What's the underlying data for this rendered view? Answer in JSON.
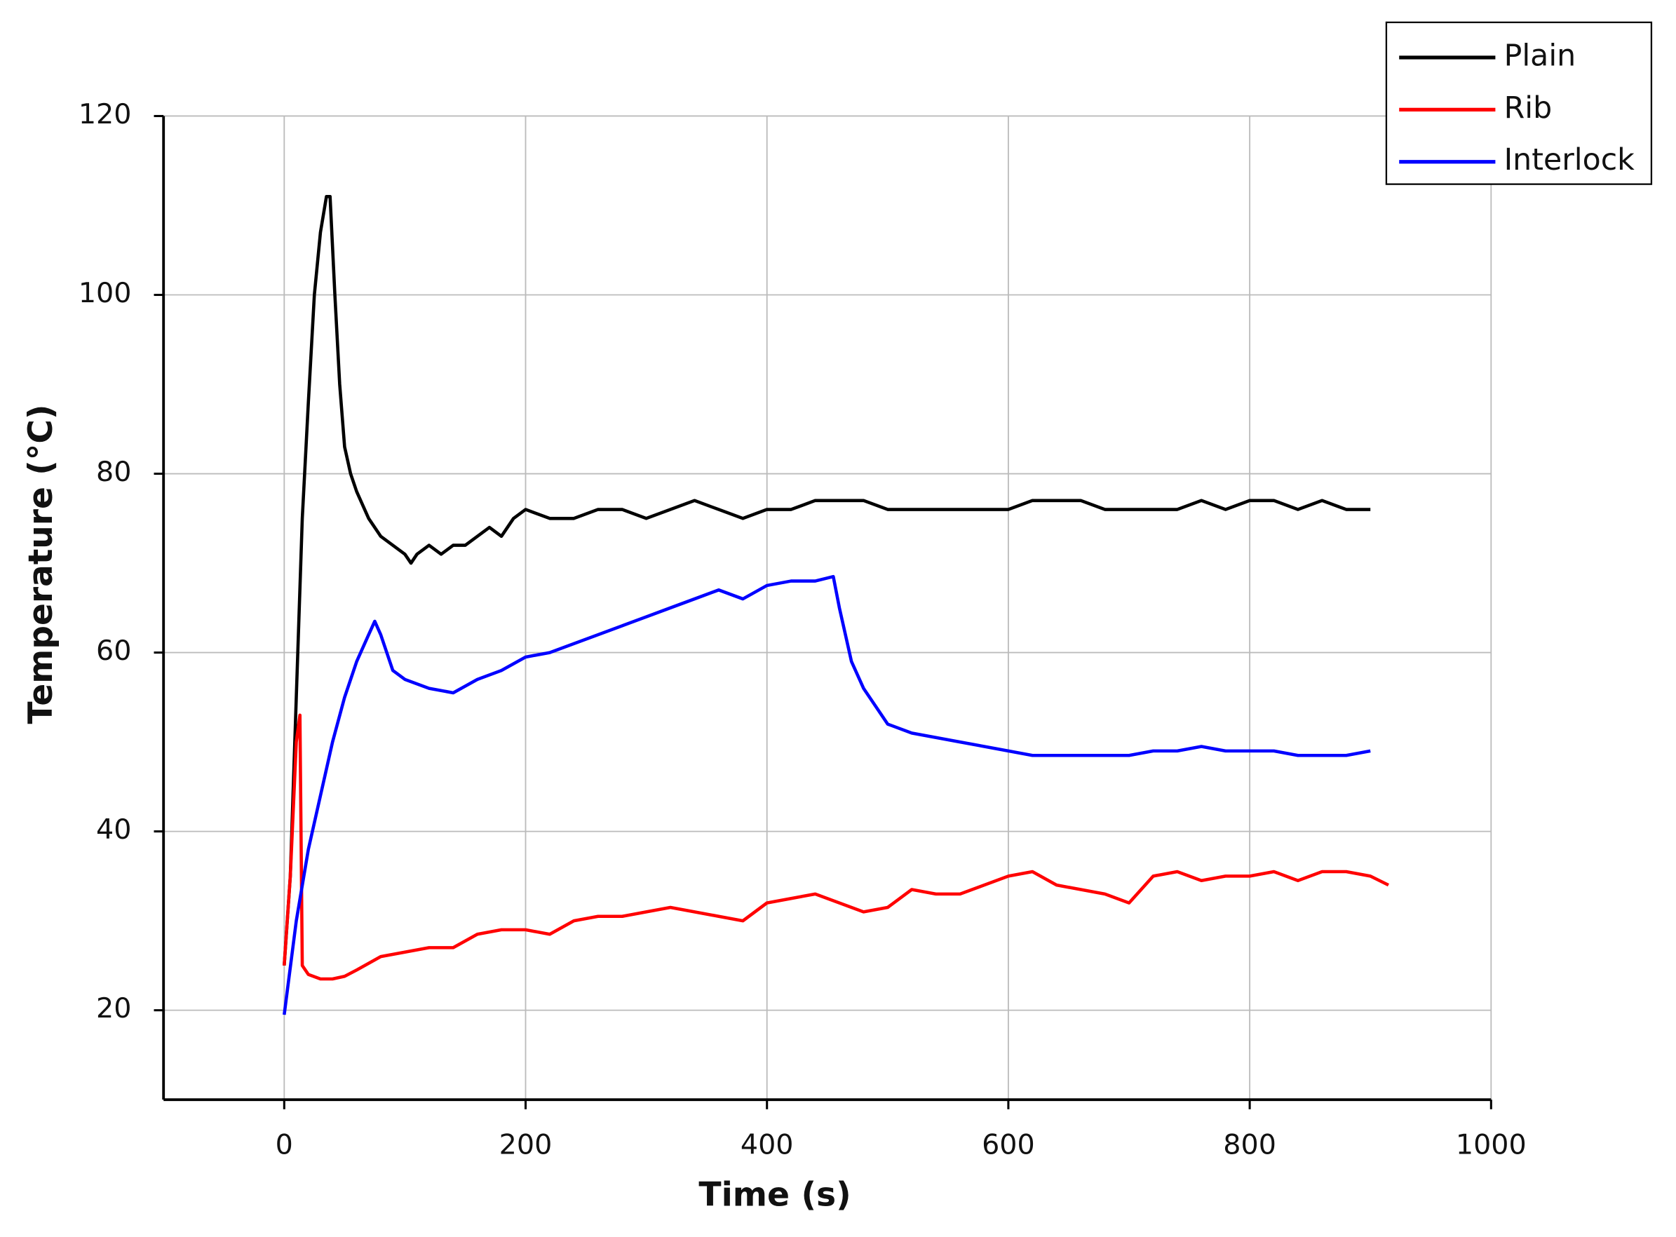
{
  "chart_data": {
    "type": "line",
    "x_label": "Time (s)",
    "y_label": "Temperature (°C)",
    "xlim": [
      -100,
      1000
    ],
    "xticks": [
      0,
      200,
      400,
      600,
      800,
      1000
    ],
    "ylim": [
      10,
      120
    ],
    "yticks": [
      20,
      40,
      60,
      80,
      100,
      120
    ],
    "grid": true,
    "legend": "upper-right",
    "series": [
      {
        "name": "Plain",
        "color": "#000000",
        "x": [
          0,
          5,
          10,
          15,
          20,
          25,
          30,
          35,
          38,
          42,
          46,
          50,
          55,
          60,
          70,
          80,
          90,
          100,
          105,
          110,
          120,
          130,
          140,
          150,
          160,
          170,
          180,
          190,
          200,
          220,
          240,
          260,
          280,
          300,
          320,
          340,
          360,
          380,
          400,
          420,
          440,
          460,
          480,
          500,
          520,
          540,
          560,
          580,
          600,
          620,
          640,
          660,
          680,
          700,
          720,
          740,
          760,
          780,
          800,
          820,
          840,
          860,
          880,
          900
        ],
        "values": [
          25,
          35,
          55,
          75,
          88,
          100,
          107,
          111,
          111,
          100,
          90,
          83,
          80,
          78,
          75,
          73,
          72,
          71,
          70,
          71,
          72,
          71,
          72,
          72,
          73,
          74,
          73,
          75,
          76,
          75,
          75,
          76,
          76,
          75,
          76,
          77,
          76,
          75,
          76,
          76,
          77,
          77,
          77,
          76,
          76,
          76,
          76,
          76,
          76,
          77,
          77,
          77,
          76,
          76,
          76,
          76,
          77,
          76,
          77,
          77,
          76,
          77,
          76,
          76
        ]
      },
      {
        "name": "Rib",
        "color": "#ff0000",
        "x": [
          0,
          5,
          10,
          13,
          15,
          20,
          30,
          40,
          50,
          60,
          80,
          100,
          120,
          140,
          160,
          180,
          200,
          220,
          240,
          260,
          280,
          300,
          320,
          340,
          360,
          380,
          400,
          420,
          440,
          460,
          480,
          500,
          520,
          540,
          560,
          580,
          600,
          620,
          640,
          660,
          680,
          700,
          720,
          740,
          760,
          780,
          800,
          820,
          840,
          860,
          880,
          900,
          915
        ],
        "values": [
          25,
          35,
          50,
          53,
          25,
          24,
          23.5,
          23.5,
          23.8,
          24.5,
          26,
          26.5,
          27,
          27,
          28.5,
          29,
          29,
          28.5,
          30,
          30.5,
          30.5,
          31,
          31.5,
          31,
          30.5,
          30,
          32,
          32.5,
          33,
          32,
          31,
          31.5,
          33.5,
          33,
          33,
          34,
          35,
          35.5,
          34,
          33.5,
          33,
          32,
          35,
          35.5,
          34.5,
          35,
          35,
          35.5,
          34.5,
          35.5,
          35.5,
          35,
          34
        ]
      },
      {
        "name": "Interlock",
        "color": "#0000ff",
        "x": [
          0,
          10,
          20,
          30,
          40,
          50,
          60,
          70,
          75,
          80,
          90,
          100,
          120,
          140,
          160,
          180,
          200,
          220,
          240,
          260,
          280,
          300,
          320,
          340,
          360,
          380,
          400,
          420,
          440,
          455,
          460,
          470,
          480,
          500,
          520,
          540,
          560,
          580,
          600,
          620,
          640,
          660,
          680,
          700,
          720,
          740,
          760,
          780,
          800,
          820,
          840,
          860,
          880,
          900
        ],
        "values": [
          19.5,
          30,
          38,
          44,
          50,
          55,
          59,
          62,
          63.5,
          62,
          58,
          57,
          56,
          55.5,
          57,
          58,
          59.5,
          60,
          61,
          62,
          63,
          64,
          65,
          66,
          67,
          66,
          67.5,
          68,
          68,
          68.5,
          65,
          59,
          56,
          52,
          51,
          50.5,
          50,
          49.5,
          49,
          48.5,
          48.5,
          48.5,
          48.5,
          48.5,
          49,
          49,
          49.5,
          49,
          49,
          49,
          48.5,
          48.5,
          48.5,
          49
        ]
      }
    ]
  }
}
